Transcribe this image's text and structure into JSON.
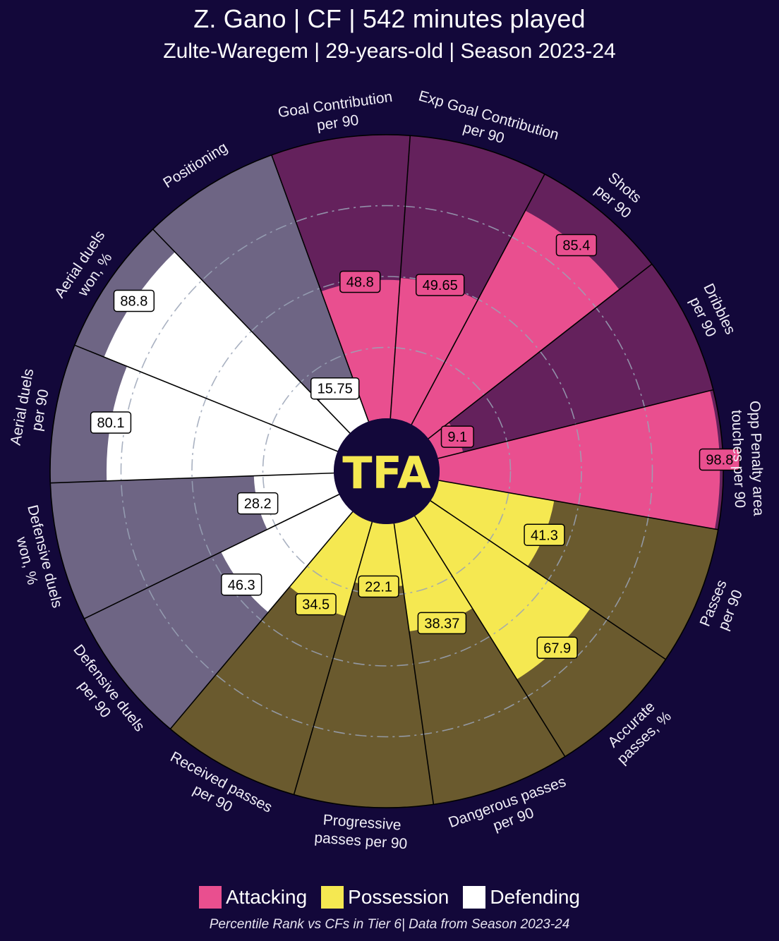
{
  "header": {
    "title": "Z. Gano | CF | 542 minutes played",
    "subtitle": "Zulte-Waregem | 29-years-old | Season 2023-24"
  },
  "logo": {
    "text": "TFA",
    "color": "#f5e851"
  },
  "legend": [
    {
      "label": "Attacking",
      "color": "#e94f8f"
    },
    {
      "label": "Possession",
      "color": "#f5e851"
    },
    {
      "label": "Defending",
      "color": "#ffffff"
    }
  ],
  "footnote": "Percentile Rank vs CFs in Tier 6| Data from Season 2023-24",
  "chart_data": {
    "type": "radial-bar",
    "title": "Z. Gano | CF | 542 minutes played",
    "subtitle": "Zulte-Waregem | 29-years-old | Season 2023-24",
    "range": [
      0,
      100
    ],
    "gridlines": [
      25,
      50,
      75
    ],
    "colors": {
      "Attacking": {
        "fill": "#e94f8f",
        "background": "#64215c"
      },
      "Possession": {
        "fill": "#f5e851",
        "background": "#6a5a2e"
      },
      "Defending": {
        "fill": "#ffffff",
        "background": "#6e6584"
      }
    },
    "metrics": [
      {
        "label": [
          "Goal Contribution",
          "per 90"
        ],
        "value": 48.8,
        "display": "48.8",
        "group": "Attacking"
      },
      {
        "label": [
          "Exp Goal Contribution",
          "per 90"
        ],
        "value": 49.65,
        "display": "49.65",
        "group": "Attacking"
      },
      {
        "label": [
          "Shots",
          "per 90"
        ],
        "value": 85.4,
        "display": "85.4",
        "group": "Attacking"
      },
      {
        "label": [
          "Dribbles",
          "per 90"
        ],
        "value": 9.1,
        "display": "9.1",
        "group": "Attacking"
      },
      {
        "label": [
          "Opp Penalty area",
          "touches per 90"
        ],
        "value": 98.8,
        "display": "98.8",
        "group": "Attacking"
      },
      {
        "label": [
          "Passes",
          "per 90"
        ],
        "value": 41.3,
        "display": "41.3",
        "group": "Possession"
      },
      {
        "label": [
          "Accurate",
          "passes, %"
        ],
        "value": 67.9,
        "display": "67.9",
        "group": "Possession"
      },
      {
        "label": [
          "Dangerous passes",
          "per 90"
        ],
        "value": 38.37,
        "display": "38.37",
        "group": "Possession"
      },
      {
        "label": [
          "Progressive",
          "passes per 90"
        ],
        "value": 22.1,
        "display": "22.1",
        "group": "Possession"
      },
      {
        "label": [
          "Received passes",
          "per 90"
        ],
        "value": 34.5,
        "display": "34.5",
        "group": "Possession"
      },
      {
        "label": [
          "Defensive duels",
          "per 90"
        ],
        "value": 46.3,
        "display": "46.3",
        "group": "Defending"
      },
      {
        "label": [
          "Defensive duels",
          "won, %"
        ],
        "value": 28.2,
        "display": "28.2",
        "group": "Defending"
      },
      {
        "label": [
          "Aerial duels",
          "per 90"
        ],
        "value": 80.1,
        "display": "80.1",
        "group": "Defending"
      },
      {
        "label": [
          "Aerial duels",
          "won, %"
        ],
        "value": 88.8,
        "display": "88.8",
        "group": "Defending"
      },
      {
        "label": [
          "Positioning"
        ],
        "value": 15.75,
        "display": "15.75",
        "group": "Defending"
      }
    ]
  }
}
